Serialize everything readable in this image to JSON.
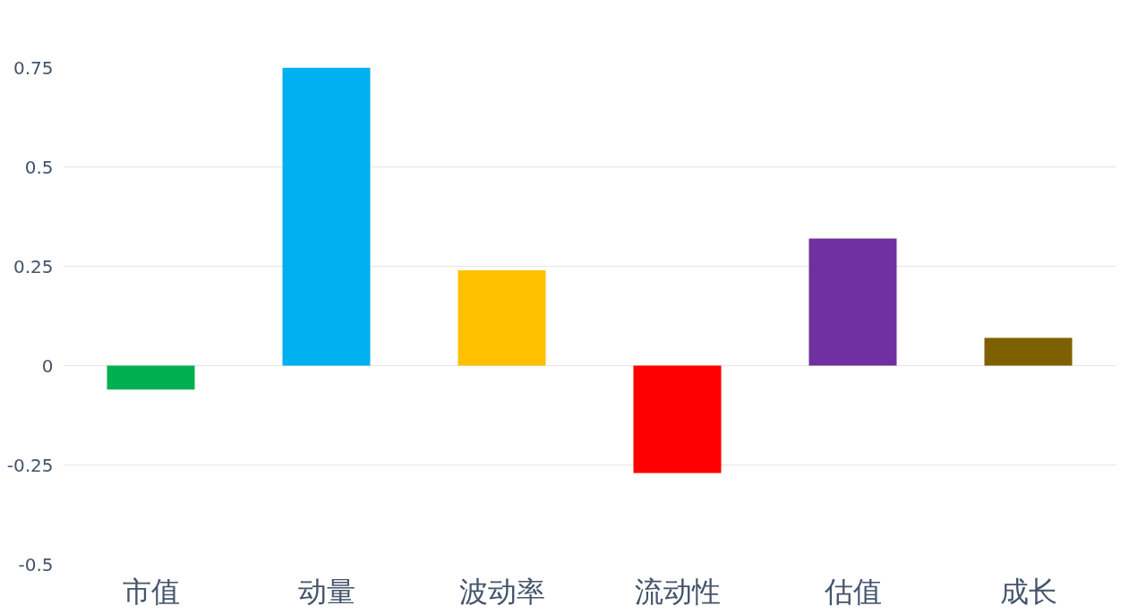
{
  "chart_data": {
    "type": "bar",
    "categories": [
      "市值",
      "动量",
      "波动率",
      "流动性",
      "估值",
      "成长"
    ],
    "values": [
      -0.06,
      0.75,
      0.24,
      -0.27,
      0.32,
      0.07
    ],
    "colors": [
      "#00b050",
      "#00b0f0",
      "#ffc000",
      "#ff0000",
      "#7030a0",
      "#7f6000"
    ],
    "ylim": [
      -0.5,
      0.75
    ],
    "yticks": [
      -0.5,
      -0.25,
      0,
      0.25,
      0.5,
      0.75
    ],
    "grid": "y"
  }
}
